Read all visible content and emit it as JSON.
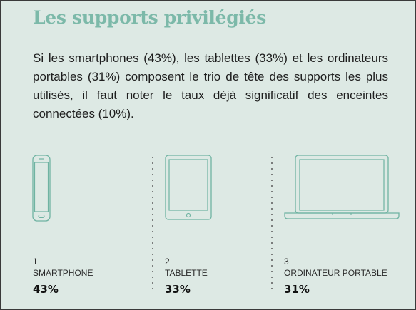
{
  "title": "Les supports privilégiés",
  "intro": "Si les smartphones (43%), les tablettes (33%) et les ordinateurs portables (31%) composent le trio de tête des supports les plus utilisés, il faut noter le taux déjà significatif des enceintes connectées (10%).",
  "devices": [
    {
      "rank": "1",
      "label": "SMARTPHONE",
      "percent": "43%",
      "icon": "smartphone-icon"
    },
    {
      "rank": "2",
      "label": "TABLETTE",
      "percent": "33%",
      "icon": "tablet-icon"
    },
    {
      "rank": "3",
      "label": "ORDINATEUR PORTABLE",
      "percent": "31%",
      "icon": "laptop-icon"
    }
  ],
  "colors": {
    "background": "#dde9e4",
    "title": "#7cb9a9",
    "icon_stroke": "#6fb3a2"
  }
}
